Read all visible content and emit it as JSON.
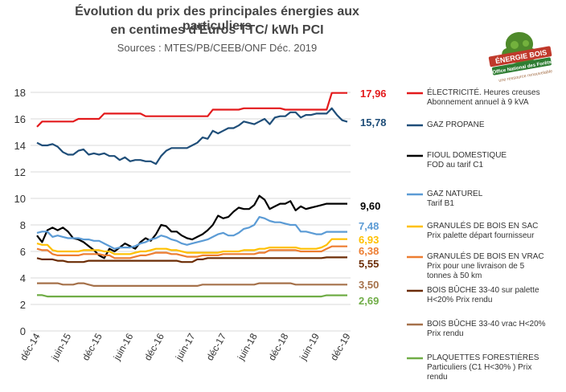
{
  "chart_data": {
    "type": "line",
    "title_line1": "Évolution du prix des principales énergies aux particuliers",
    "title_line2": "en centimes d'Euros TTC/ kWh PCI",
    "subtitle": "Sources : MTES/PB/CEEB/ONF  Déc. 2019",
    "ylim": [
      0,
      18
    ],
    "yticks": [
      "0",
      "2",
      "4",
      "6",
      "8",
      "10",
      "12",
      "14",
      "16",
      "18"
    ],
    "xticks": [
      "déc-14",
      "juin-15",
      "déc-15",
      "juin-16",
      "déc-16",
      "juin-17",
      "déc-17",
      "juin-18",
      "déc-18",
      "juin-19",
      "déc-19"
    ],
    "grid": "horizontal",
    "legend_position": "right",
    "series": [
      {
        "color": "#e31a1c",
        "legend": [
          "ÉLECTRICITÉ. Heures creuses",
          "Abonnement annuel à 9 kVA"
        ],
        "end_label": "17,96",
        "values": [
          15.4,
          15.8,
          15.8,
          15.8,
          15.8,
          15.8,
          15.8,
          15.8,
          16.0,
          16.0,
          16.0,
          16.0,
          16.0,
          16.4,
          16.4,
          16.4,
          16.4,
          16.4,
          16.4,
          16.4,
          16.4,
          16.2,
          16.2,
          16.2,
          16.2,
          16.2,
          16.2,
          16.2,
          16.2,
          16.2,
          16.2,
          16.2,
          16.2,
          16.2,
          16.7,
          16.7,
          16.7,
          16.7,
          16.7,
          16.7,
          16.8,
          16.8,
          16.8,
          16.8,
          16.8,
          16.8,
          16.8,
          16.8,
          16.7,
          16.7,
          16.7,
          16.7,
          16.7,
          16.7,
          16.7,
          16.7,
          16.7,
          17.96,
          17.96,
          17.96,
          17.96
        ]
      },
      {
        "color": "#1f4e79",
        "legend": [
          "GAZ PROPANE"
        ],
        "end_label": "15,78",
        "values": [
          14.2,
          14.0,
          14.0,
          14.1,
          13.9,
          13.5,
          13.3,
          13.3,
          13.6,
          13.7,
          13.3,
          13.4,
          13.3,
          13.4,
          13.2,
          13.2,
          12.9,
          13.1,
          12.8,
          12.9,
          12.9,
          12.8,
          12.8,
          12.6,
          13.2,
          13.6,
          13.8,
          13.8,
          13.8,
          13.8,
          14.0,
          14.2,
          14.6,
          14.5,
          15.1,
          14.9,
          15.1,
          15.3,
          15.3,
          15.5,
          15.8,
          15.7,
          15.6,
          15.8,
          16.0,
          15.6,
          16.1,
          16.2,
          16.2,
          16.5,
          16.5,
          16.1,
          16.3,
          16.3,
          16.4,
          16.4,
          16.4,
          16.8,
          16.3,
          15.9,
          15.78
        ]
      },
      {
        "color": "#000000",
        "legend": [
          "FIOUL DOMESTIQUE",
          "FOD au tarif C1"
        ],
        "end_label": "9,60",
        "values": [
          7.2,
          6.7,
          7.6,
          7.8,
          7.6,
          7.8,
          7.5,
          7.0,
          6.9,
          6.7,
          6.4,
          6.1,
          5.7,
          5.5,
          6.2,
          6.0,
          6.3,
          6.6,
          6.4,
          6.2,
          6.7,
          7.0,
          6.8,
          7.3,
          8.0,
          7.9,
          7.5,
          7.5,
          7.2,
          7.0,
          6.9,
          7.1,
          7.3,
          7.6,
          8.0,
          8.7,
          8.5,
          8.6,
          9.0,
          9.3,
          9.2,
          9.2,
          9.5,
          10.2,
          9.9,
          9.2,
          9.4,
          9.6,
          9.6,
          9.8,
          9.1,
          9.4,
          9.2,
          9.3,
          9.4,
          9.5,
          9.6,
          9.6,
          9.6,
          9.6,
          9.6
        ]
      },
      {
        "color": "#5b9bd5",
        "legend": [
          "GAZ NATUREL",
          "Tarif B1"
        ],
        "end_label": "7,48",
        "values": [
          7.4,
          7.5,
          7.5,
          7.1,
          7.2,
          7.1,
          7.0,
          7.0,
          7.0,
          6.9,
          6.9,
          6.8,
          6.8,
          6.6,
          6.4,
          6.2,
          6.3,
          6.3,
          6.3,
          6.4,
          6.6,
          6.7,
          6.9,
          7.0,
          7.2,
          7.1,
          6.9,
          6.8,
          6.6,
          6.5,
          6.6,
          6.7,
          6.8,
          6.9,
          7.1,
          7.3,
          7.4,
          7.2,
          7.2,
          7.4,
          7.7,
          7.8,
          8.0,
          8.6,
          8.5,
          8.3,
          8.2,
          8.2,
          8.1,
          8.0,
          8.0,
          7.5,
          7.5,
          7.4,
          7.3,
          7.3,
          7.48,
          7.48,
          7.48,
          7.48,
          7.48
        ]
      },
      {
        "color": "#ffc000",
        "legend": [
          "GRANULÉS DE BOIS EN SAC",
          "Prix palette départ fournisseur"
        ],
        "end_label": "6,93",
        "values": [
          6.6,
          6.5,
          6.5,
          6.1,
          6.0,
          6.0,
          6.0,
          6.0,
          6.0,
          6.1,
          6.1,
          6.1,
          6.1,
          6.0,
          6.0,
          5.8,
          5.8,
          5.8,
          5.8,
          5.9,
          6.0,
          6.0,
          6.1,
          6.2,
          6.2,
          6.2,
          6.1,
          6.1,
          6.0,
          5.9,
          5.9,
          5.9,
          5.9,
          5.9,
          5.9,
          5.9,
          6.0,
          6.0,
          6.0,
          6.0,
          6.1,
          6.1,
          6.1,
          6.2,
          6.2,
          6.3,
          6.3,
          6.3,
          6.3,
          6.3,
          6.3,
          6.2,
          6.2,
          6.2,
          6.2,
          6.3,
          6.5,
          6.93,
          6.93,
          6.93,
          6.93
        ]
      },
      {
        "color": "#ed7d31",
        "legend": [
          "GRANULÉS DE BOIS EN VRAC",
          "Prix pour une livraison de 5",
          "tonnes à 50 km"
        ],
        "end_label": "6,38",
        "values": [
          6.2,
          6.1,
          6.1,
          5.8,
          5.7,
          5.7,
          5.7,
          5.7,
          5.7,
          5.8,
          5.8,
          5.8,
          5.8,
          5.7,
          5.7,
          5.5,
          5.5,
          5.5,
          5.5,
          5.6,
          5.7,
          5.7,
          5.8,
          5.9,
          5.9,
          5.9,
          5.8,
          5.8,
          5.7,
          5.6,
          5.6,
          5.6,
          5.7,
          5.7,
          5.7,
          5.7,
          5.8,
          5.8,
          5.8,
          5.8,
          5.8,
          5.8,
          5.8,
          5.9,
          5.9,
          6.1,
          6.1,
          6.1,
          6.1,
          6.1,
          6.1,
          6.0,
          6.0,
          6.0,
          6.0,
          6.0,
          6.2,
          6.38,
          6.38,
          6.38,
          6.38
        ]
      },
      {
        "color": "#6b2c05",
        "legend": [
          "BOIS BÛCHE 33-40 sur palette",
          "H<20%  Prix rendu"
        ],
        "end_label": "5,55",
        "values": [
          5.5,
          5.4,
          5.4,
          5.4,
          5.3,
          5.3,
          5.2,
          5.2,
          5.2,
          5.2,
          5.3,
          5.3,
          5.3,
          5.3,
          5.3,
          5.3,
          5.3,
          5.3,
          5.3,
          5.3,
          5.3,
          5.3,
          5.3,
          5.3,
          5.3,
          5.3,
          5.3,
          5.3,
          5.2,
          5.2,
          5.2,
          5.4,
          5.4,
          5.5,
          5.5,
          5.5,
          5.5,
          5.5,
          5.5,
          5.5,
          5.5,
          5.5,
          5.5,
          5.5,
          5.5,
          5.5,
          5.5,
          5.5,
          5.5,
          5.5,
          5.5,
          5.5,
          5.5,
          5.5,
          5.5,
          5.5,
          5.55,
          5.55,
          5.55,
          5.55,
          5.55
        ]
      },
      {
        "color": "#a5714a",
        "legend": [
          "BOIS BÛCHE 33-40 vrac H<20%",
          "Prix rendu"
        ],
        "end_label": "3,50",
        "values": [
          3.6,
          3.6,
          3.6,
          3.6,
          3.6,
          3.5,
          3.5,
          3.5,
          3.6,
          3.6,
          3.5,
          3.4,
          3.4,
          3.4,
          3.4,
          3.4,
          3.4,
          3.4,
          3.4,
          3.4,
          3.4,
          3.4,
          3.4,
          3.4,
          3.4,
          3.4,
          3.4,
          3.4,
          3.4,
          3.4,
          3.4,
          3.4,
          3.5,
          3.5,
          3.5,
          3.5,
          3.5,
          3.5,
          3.5,
          3.5,
          3.5,
          3.5,
          3.5,
          3.6,
          3.6,
          3.6,
          3.6,
          3.6,
          3.6,
          3.6,
          3.5,
          3.5,
          3.5,
          3.5,
          3.5,
          3.5,
          3.5,
          3.5,
          3.5,
          3.5,
          3.5
        ]
      },
      {
        "color": "#70ad47",
        "legend": [
          "PLAQUETTES FORESTIÈRES",
          "Particuliers (C1 H<30% ) Prix",
          "rendu"
        ],
        "end_label": "2,69",
        "values": [
          2.7,
          2.7,
          2.6,
          2.6,
          2.6,
          2.6,
          2.6,
          2.6,
          2.6,
          2.6,
          2.6,
          2.6,
          2.6,
          2.6,
          2.6,
          2.6,
          2.6,
          2.6,
          2.6,
          2.6,
          2.6,
          2.6,
          2.6,
          2.6,
          2.6,
          2.6,
          2.6,
          2.6,
          2.6,
          2.6,
          2.6,
          2.6,
          2.6,
          2.6,
          2.6,
          2.6,
          2.6,
          2.6,
          2.6,
          2.6,
          2.6,
          2.6,
          2.6,
          2.6,
          2.6,
          2.6,
          2.6,
          2.6,
          2.6,
          2.6,
          2.6,
          2.6,
          2.6,
          2.6,
          2.6,
          2.6,
          2.69,
          2.69,
          2.69,
          2.69,
          2.69
        ]
      }
    ]
  },
  "logo": {
    "line1": "ÉNERGIE BOIS",
    "line2": "Office National des Forêts",
    "tagline": "une ressource renouvelable"
  }
}
